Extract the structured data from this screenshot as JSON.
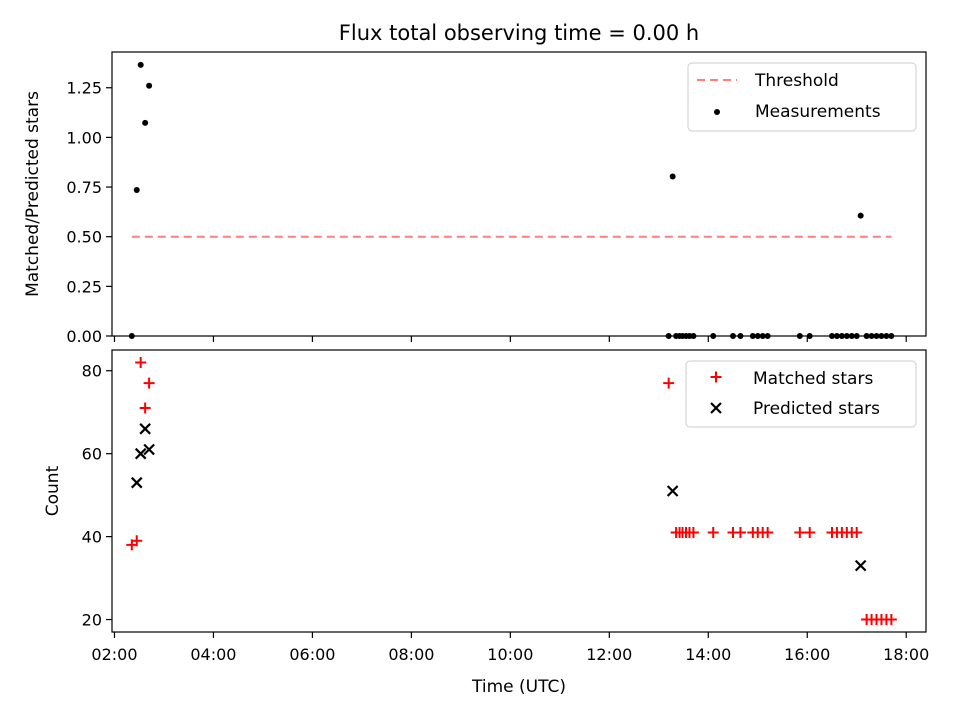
{
  "chart_data": {
    "type": "scatter",
    "title": "Flux total observing time = 0.00 h",
    "xlabel": "Time (UTC)",
    "x_ticks": [
      "02:00",
      "04:00",
      "06:00",
      "08:00",
      "10:00",
      "12:00",
      "14:00",
      "16:00",
      "18:00"
    ],
    "xlim_hours": [
      1.95,
      18.4
    ],
    "panels": [
      {
        "ylabel": "Matched/Predicted stars",
        "ylim": [
          0,
          1.43
        ],
        "y_ticks": [
          "0.00",
          "0.25",
          "0.50",
          "0.75",
          "1.00",
          "1.25"
        ],
        "legend": {
          "position": "top-right",
          "threshold_label": "Threshold",
          "measurements_label": "Measurements"
        },
        "threshold": {
          "value": 0.5,
          "x_start": 2.35,
          "x_end": 17.7,
          "color": "#ff7f7f"
        },
        "measurements": {
          "name": "Measurements",
          "color": "#000000",
          "points": [
            [
              2.35,
              0.0
            ],
            [
              2.45,
              0.735
            ],
            [
              2.53,
              1.365
            ],
            [
              2.62,
              1.073
            ],
            [
              2.7,
              1.26
            ],
            [
              13.2,
              0.0
            ],
            [
              13.28,
              0.803
            ],
            [
              13.35,
              0.0
            ],
            [
              13.42,
              0.0
            ],
            [
              13.48,
              0.0
            ],
            [
              13.55,
              0.0
            ],
            [
              13.62,
              0.0
            ],
            [
              13.7,
              0.0
            ],
            [
              14.1,
              0.0
            ],
            [
              14.5,
              0.0
            ],
            [
              14.65,
              0.0
            ],
            [
              14.9,
              0.0
            ],
            [
              15.0,
              0.0
            ],
            [
              15.1,
              0.0
            ],
            [
              15.2,
              0.0
            ],
            [
              15.85,
              0.0
            ],
            [
              16.05,
              0.0
            ],
            [
              16.5,
              0.0
            ],
            [
              16.6,
              0.0
            ],
            [
              16.7,
              0.0
            ],
            [
              16.8,
              0.0
            ],
            [
              16.9,
              0.0
            ],
            [
              17.0,
              0.0
            ],
            [
              17.08,
              0.606
            ],
            [
              17.2,
              0.0
            ],
            [
              17.3,
              0.0
            ],
            [
              17.4,
              0.0
            ],
            [
              17.5,
              0.0
            ],
            [
              17.6,
              0.0
            ],
            [
              17.7,
              0.0
            ]
          ]
        }
      },
      {
        "ylabel": "Count",
        "ylim": [
          17,
          85
        ],
        "y_ticks": [
          "20",
          "40",
          "60",
          "80"
        ],
        "legend": {
          "position": "top-right",
          "matched_label": "Matched stars",
          "predicted_label": "Predicted stars"
        },
        "matched": {
          "name": "Matched stars",
          "color": "#ff0000",
          "points": [
            [
              2.35,
              38
            ],
            [
              2.45,
              39
            ],
            [
              2.53,
              82
            ],
            [
              2.62,
              71
            ],
            [
              2.7,
              77
            ],
            [
              13.2,
              77
            ],
            [
              13.35,
              41
            ],
            [
              13.42,
              41
            ],
            [
              13.48,
              41
            ],
            [
              13.55,
              41
            ],
            [
              13.62,
              41
            ],
            [
              13.7,
              41
            ],
            [
              14.1,
              41
            ],
            [
              14.5,
              41
            ],
            [
              14.65,
              41
            ],
            [
              14.9,
              41
            ],
            [
              15.0,
              41
            ],
            [
              15.1,
              41
            ],
            [
              15.2,
              41
            ],
            [
              15.85,
              41
            ],
            [
              16.05,
              41
            ],
            [
              16.5,
              41
            ],
            [
              16.6,
              41
            ],
            [
              16.7,
              41
            ],
            [
              16.8,
              41
            ],
            [
              16.9,
              41
            ],
            [
              17.0,
              41
            ],
            [
              17.2,
              20
            ],
            [
              17.3,
              20
            ],
            [
              17.4,
              20
            ],
            [
              17.5,
              20
            ],
            [
              17.6,
              20
            ],
            [
              17.7,
              20
            ]
          ]
        },
        "predicted": {
          "name": "Predicted stars",
          "color": "#000000",
          "points": [
            [
              2.45,
              53
            ],
            [
              2.53,
              60
            ],
            [
              2.62,
              66
            ],
            [
              2.7,
              61
            ],
            [
              13.28,
              51
            ],
            [
              17.08,
              33
            ]
          ]
        }
      }
    ]
  }
}
